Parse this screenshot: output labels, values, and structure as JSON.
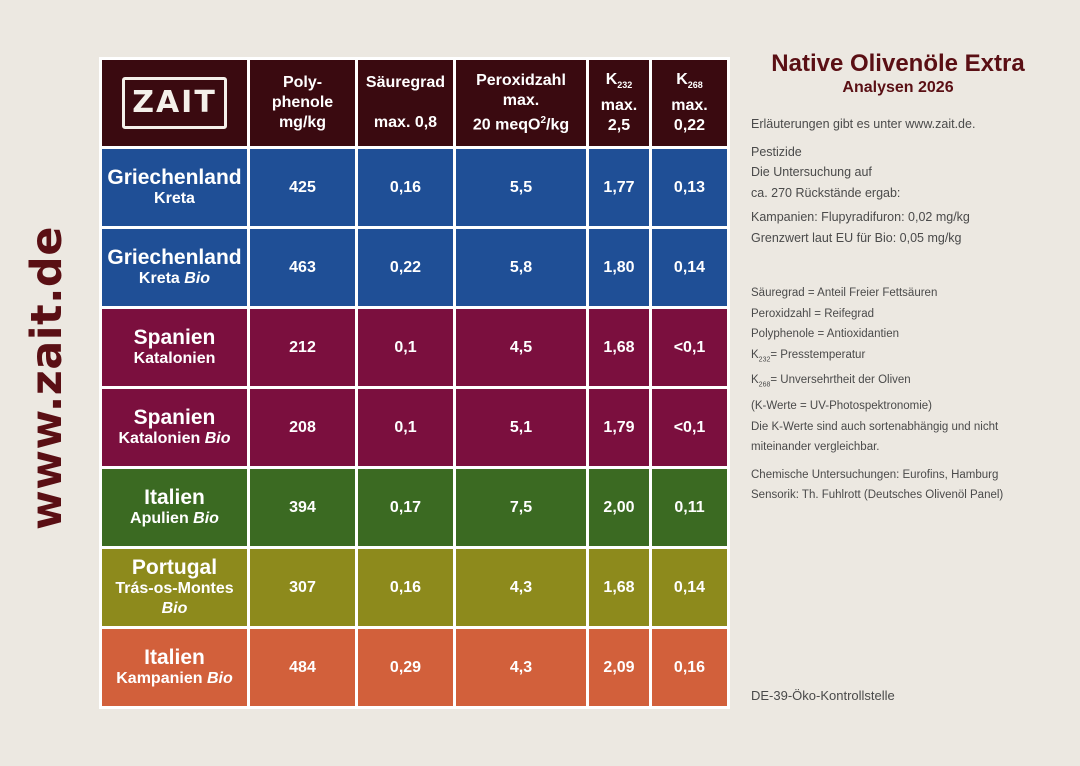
{
  "side_url": "www.zait.de",
  "logo_text": "ZAIT",
  "header": {
    "polyphenole": [
      "Poly-",
      "phenole",
      "mg/kg"
    ],
    "saeure": [
      "Säuregrad",
      "max. 0,8"
    ],
    "peroxid": [
      "Peroxidzahl",
      "max.",
      "20 meqO",
      "2",
      "/kg"
    ],
    "k232": [
      "K",
      "232",
      "max.",
      "2,5"
    ],
    "k268": [
      "K",
      "268",
      "max.",
      "0,22"
    ]
  },
  "rows": [
    {
      "country": "Griechenland",
      "region": "Kreta",
      "bio": "",
      "poly": "425",
      "saeure": "0,16",
      "peroxid": "5,5",
      "k232": "1,77",
      "k268": "0,13"
    },
    {
      "country": "Griechenland",
      "region": "Kreta",
      "bio": "Bio",
      "poly": "463",
      "saeure": "0,22",
      "peroxid": "5,8",
      "k232": "1,80",
      "k268": "0,14"
    },
    {
      "country": "Spanien",
      "region": "Katalonien",
      "bio": "",
      "poly": "212",
      "saeure": "0,1",
      "peroxid": "4,5",
      "k232": "1,68",
      "k268": "<0,1"
    },
    {
      "country": "Spanien",
      "region": "Katalonien",
      "bio": "Bio",
      "poly": "208",
      "saeure": "0,1",
      "peroxid": "5,1",
      "k232": "1,79",
      "k268": "<0,1"
    },
    {
      "country": "Italien",
      "region": "Apulien",
      "bio": "Bio",
      "poly": "394",
      "saeure": "0,17",
      "peroxid": "7,5",
      "k232": "2,00",
      "k268": "0,11"
    },
    {
      "country": "Portugal",
      "region": "Trás-os-Montes",
      "bio": "Bio",
      "poly": "307",
      "saeure": "0,16",
      "peroxid": "4,3",
      "k232": "1,68",
      "k268": "0,14"
    },
    {
      "country": "Italien",
      "region": "Kampanien",
      "bio": "Bio",
      "poly": "484",
      "saeure": "0,29",
      "peroxid": "4,3",
      "k232": "2,09",
      "k268": "0,16"
    }
  ],
  "colors": {
    "header": "#3a0a10",
    "blue": "#1f4f96",
    "wine": "#7b0f3e",
    "green": "#3b6a22",
    "olive": "#8d8a1c",
    "orange": "#d2603b",
    "title": "#5a0f14"
  },
  "panel": {
    "title": "Native Olivenöle Extra",
    "subtitle": "Analysen 2026",
    "info": "Erläuterungen gibt es unter www.zait.de.",
    "pest1": "Pestizide",
    "pest2": "Die Untersuchung auf",
    "pest3": "ca. 270 Rückstände ergab:",
    "kamp": "Kampanien: Flupyradifuron: 0,02 mg/kg",
    "grenz": "Grenzwert laut EU für Bio: 0,05 mg/kg",
    "g1": "Säuregrad = Anteil Freier Fettsäuren",
    "g2": "Peroxidzahl = Reifegrad",
    "g3": "Polyphenole = Antioxidantien",
    "g4_k": "K",
    "g4_sub": "232",
    "g4_rest": "=  Presstemperatur",
    "g5_k": "K",
    "g5_sub": "268",
    "g5_rest": "= Unversehrtheit der Oliven",
    "g6": "(K-Werte = UV-Photospektronomie)",
    "g7": "Die K-Werte sind auch sortenabhängig und nicht",
    "g8": "miteinander vergleichbar.",
    "c1": "Chemische Untersuchungen: Eurofins, Hamburg",
    "c2": "Sensorik: Th. Fuhlrott (Deutsches Olivenöl Panel)"
  },
  "footer": "DE-39-Öko-Kontrollstelle"
}
